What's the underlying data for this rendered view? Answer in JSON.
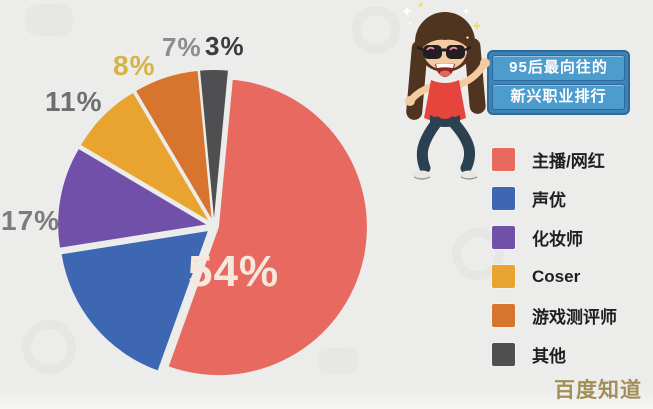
{
  "page": {
    "background": "#ECECEA",
    "watermark_text": "百度知道",
    "watermark_color": "#A28E58"
  },
  "title_box": {
    "line1": "95后最向往的",
    "line2": "新兴职业排行",
    "bg": "#3D83B5",
    "row_bg": "#4C9CCE",
    "border": "#2B6A9B",
    "text_color": "#FFFFFF"
  },
  "character": {
    "name": "dancing-girl-with-sunglasses",
    "sparkles": [
      "✚",
      "✦",
      "●",
      "✦",
      "✚",
      "●"
    ]
  },
  "chart_data": {
    "type": "pie",
    "title": "95后最向往的新兴职业排行",
    "legend_position": "right",
    "start_offset_deg": 5.4,
    "slices": [
      {
        "label": "主播/网红",
        "value": 54,
        "label_text": "54%",
        "color": "#E7695F",
        "label_color": "#F6E8DB"
      },
      {
        "label": "声优",
        "value": 17,
        "label_text": "17%",
        "color": "#3D66B3",
        "label_color": "#7C7C7C"
      },
      {
        "label": "化妆师",
        "value": 11,
        "label_text": "11%",
        "color": "#7050A8",
        "label_color": "#6F6F6F"
      },
      {
        "label": "Coser",
        "value": 8,
        "label_text": "8%",
        "color": "#E9A42F",
        "label_color": "#D9B245"
      },
      {
        "label": "游戏测评师",
        "value": 7,
        "label_text": "7%",
        "color": "#D7742E",
        "label_color": "#8C8C8C"
      },
      {
        "label": "其他",
        "value": 3,
        "label_text": "3%",
        "color": "#4F4F51",
        "label_color": "#3C3C3C"
      }
    ]
  }
}
